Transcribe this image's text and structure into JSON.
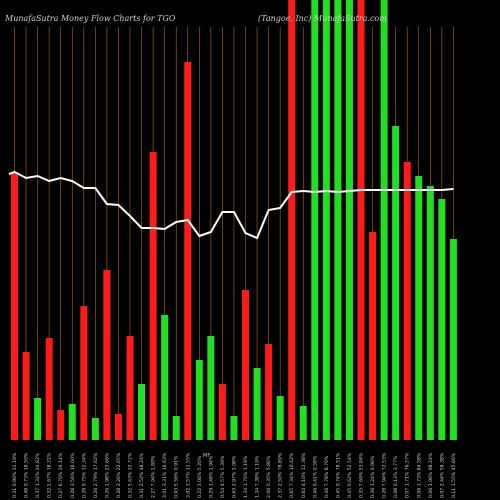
{
  "chart_data": {
    "type": "bar",
    "title": "MunafaSutra  Money Flow  Charts for TGO",
    "subtitle": "(Tangoe, Inc)  MunafaSutra.com",
    "center_label": "MF",
    "ylim": [
      0,
      440
    ],
    "grid": "vertical",
    "colors": {
      "background": "#000000",
      "up": "#21e021",
      "down": "#ff1a1a",
      "grid": "#b36b00",
      "line": "#ffffff",
      "text": "#cfcfcf"
    },
    "categories": [
      "0.31 0.90% 31.19%",
      "0.48 0.73% 18.50%",
      "0.37 1.32% 34.82%",
      "0.32 1.67% 18.31%",
      "0.27 6.70% 26.14%",
      "0.28 3.56% 16.60%",
      "0.28 9.75% 12.34%",
      "0.26 2.79% 17.62%",
      "0.26 1.98% 23.66%",
      "0.28 2.26% 22.65%",
      "0.32 5.43% 32.72%",
      "0.31 2.52% 48.24%",
      "2.27 7.94% 1.80%",
      "3.01 3.31% 16.63%",
      "0.93 5.56% 0.91%",
      "3.02 3.57% 11.55%",
      "0.22 3.04% 5.20%",
      "0.29 1.48% 1.94%",
      "0.54 4.57% 5.39%",
      "0.63 2.97% 3.08%",
      "1.34 1.76% 1.19%",
      "1.34 7.38% 1.19%",
      "2.06 0.35% 5.86%",
      "2.37 2.50% 78.89%",
      "0.65 7.34% 10.42%",
      "0.64 4.10% 12.38%",
      "0.46 0.41% 0.58%",
      "0.46 7.78% 8.70%",
      "0.45 0.74% 78.51%",
      "0.45 0.62% 52.54%",
      "0.35 7.69% 53.84%",
      "0.36 1.24% 0.96%",
      "0.28 7.94% 72.53%",
      "0.08 0.13% 3.77%",
      "0.07 1.71% 76.57%",
      "0.06 1.73% 84.58%",
      "0.06 1.96% 98.24%",
      "0.07 2.44% 58.38%",
      "0.11 1.55% 45.86%"
    ],
    "bars": {
      "heights": [
        268,
        88,
        42,
        102,
        30,
        36,
        134,
        22,
        170,
        26,
        104,
        56,
        288,
        125,
        24,
        378,
        80,
        104,
        56,
        24,
        150,
        72,
        96,
        44,
        440,
        34,
        440,
        440,
        440,
        440,
        440,
        208,
        440,
        314,
        278,
        264,
        254,
        241,
        201
      ],
      "colors": [
        "down",
        "down",
        "up",
        "down",
        "down",
        "up",
        "down",
        "up",
        "down",
        "down",
        "down",
        "up",
        "down",
        "up",
        "up",
        "down",
        "up",
        "up",
        "down",
        "up",
        "down",
        "up",
        "down",
        "up",
        "down",
        "up",
        "up",
        "up",
        "up",
        "up",
        "down",
        "down",
        "up",
        "up",
        "down",
        "up",
        "up",
        "up",
        "up"
      ]
    },
    "line": [
      268,
      262,
      264,
      259,
      262,
      259,
      252,
      252,
      236,
      235,
      224,
      212,
      212,
      211,
      218,
      220,
      204,
      208,
      228,
      228,
      207,
      202,
      230,
      232,
      248,
      249,
      248,
      249,
      248,
      249,
      250,
      250,
      250,
      250,
      250,
      250,
      250,
      250,
      251
    ]
  }
}
